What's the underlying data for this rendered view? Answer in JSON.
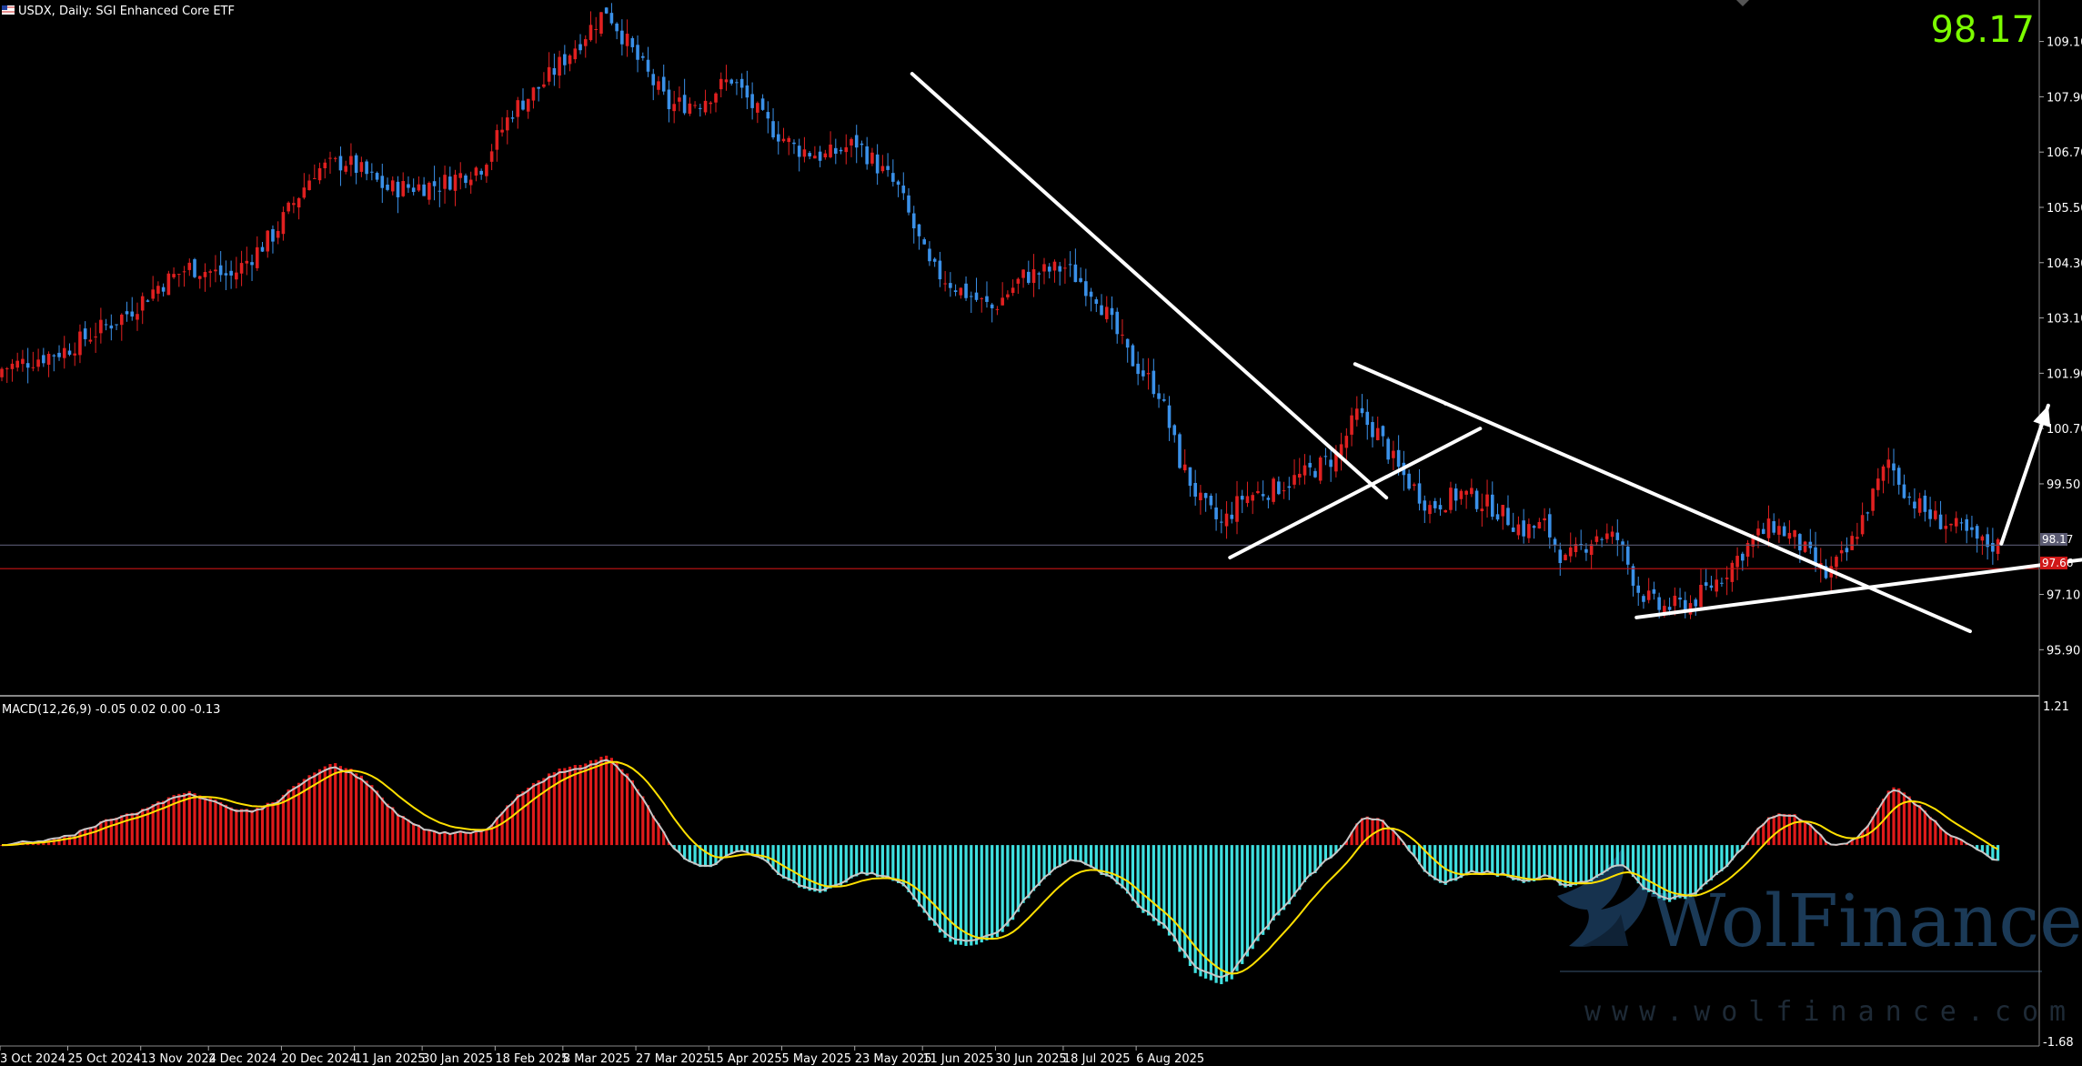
{
  "header": {
    "title": "USDX, Daily:  SGI Enhanced Core ETF",
    "last_price": "98.17",
    "price_tag": "98.17",
    "support_tag": "97.66"
  },
  "macd": {
    "label": "MACD(12,26,9) -0.05 0.02 0.00 -0.13",
    "axis_max": "1.21",
    "axis_min": "-1.68"
  },
  "watermark": {
    "brand": "WolFinance",
    "url": "www.wolfinance.com"
  },
  "colors": {
    "up": "#e02020",
    "down": "#3a90e8",
    "macd_pos": "#e01a1a",
    "macd_neg": "#3fe0e0",
    "signal": "#ffe000",
    "macd_line": "#c8c8c8",
    "support_line": "#c81414",
    "last_line": "#5a5a72",
    "trendline": "#ffffff"
  },
  "chart_data": {
    "type": "candlestick",
    "symbol": "USDX",
    "timeframe": "Daily",
    "price_axis_ticks": [
      "109.10",
      "107.90",
      "106.70",
      "105.50",
      "104.30",
      "103.10",
      "101.90",
      "100.70",
      "99.50",
      "97.10",
      "95.90"
    ],
    "date_labels": [
      "3 Oct 2024",
      "25 Oct 2024",
      "13 Nov 2024",
      "2 Dec 2024",
      "20 Dec 2024",
      "11 Jan 2025",
      "30 Jan 2025",
      "18 Feb 2025",
      "8 Mar 2025",
      "27 Mar 2025",
      "15 Apr 2025",
      "5 May 2025",
      "23 May 2025",
      "11 Jun 2025",
      "30 Jun 2025",
      "18 Jul 2025",
      "6 Aug 2025"
    ],
    "close_path": [
      [
        0,
        102.0
      ],
      [
        12,
        102.4
      ],
      [
        24,
        103.2
      ],
      [
        30,
        103.8
      ],
      [
        36,
        104.2
      ],
      [
        44,
        104.0
      ],
      [
        52,
        104.9
      ],
      [
        60,
        106.3
      ],
      [
        66,
        106.5
      ],
      [
        74,
        105.9
      ],
      [
        84,
        106.0
      ],
      [
        92,
        106.4
      ],
      [
        98,
        107.6
      ],
      [
        104,
        108.2
      ],
      [
        110,
        109.0
      ],
      [
        116,
        109.8
      ],
      [
        122,
        108.7
      ],
      [
        128,
        107.7
      ],
      [
        134,
        107.8
      ],
      [
        140,
        108.3
      ],
      [
        146,
        107.4
      ],
      [
        152,
        106.8
      ],
      [
        158,
        106.6
      ],
      [
        164,
        106.9
      ],
      [
        172,
        105.9
      ],
      [
        178,
        104.2
      ],
      [
        184,
        103.7
      ],
      [
        190,
        103.3
      ],
      [
        196,
        104.0
      ],
      [
        204,
        104.2
      ],
      [
        210,
        103.6
      ],
      [
        216,
        102.3
      ],
      [
        222,
        101.5
      ],
      [
        226,
        100.0
      ],
      [
        230,
        99.1
      ],
      [
        234,
        98.6
      ],
      [
        238,
        99.2
      ],
      [
        244,
        99.4
      ],
      [
        250,
        99.7
      ],
      [
        256,
        100.1
      ],
      [
        260,
        101.0
      ],
      [
        264,
        100.6
      ],
      [
        268,
        99.8
      ],
      [
        274,
        99.0
      ],
      [
        280,
        99.3
      ],
      [
        286,
        99.0
      ],
      [
        292,
        98.5
      ],
      [
        296,
        98.6
      ],
      [
        300,
        97.8
      ],
      [
        306,
        98.4
      ],
      [
        310,
        98.3
      ],
      [
        314,
        97.2
      ],
      [
        318,
        96.8
      ],
      [
        324,
        96.9
      ],
      [
        330,
        97.5
      ],
      [
        336,
        98.3
      ],
      [
        340,
        98.6
      ],
      [
        344,
        98.3
      ],
      [
        350,
        97.5
      ],
      [
        354,
        98.0
      ],
      [
        358,
        99.0
      ],
      [
        362,
        100.0
      ],
      [
        366,
        99.2
      ],
      [
        370,
        98.8
      ],
      [
        374,
        98.6
      ],
      [
        380,
        98.2
      ],
      [
        383,
        98.17
      ]
    ],
    "price_range": [
      94.9,
      110.0
    ],
    "macd_range": [
      -1.68,
      1.21
    ],
    "macd_last": {
      "macd": -0.05,
      "signal": 0.02,
      "histogram": 0.0,
      "value4": -0.13
    },
    "grid": false,
    "horizontal_levels": [
      {
        "name": "last",
        "value": 98.17
      },
      {
        "name": "support",
        "value": 97.66
      }
    ],
    "drawings": [
      {
        "type": "trendline",
        "from": [
          175,
          108.4
        ],
        "to": [
          266,
          99.2
        ]
      },
      {
        "type": "trendline",
        "from": [
          236,
          97.9
        ],
        "to": [
          284,
          100.7
        ]
      },
      {
        "type": "trendline",
        "from": [
          260,
          102.1
        ],
        "to": [
          378,
          96.3
        ]
      },
      {
        "type": "trendline",
        "from": [
          314,
          96.6
        ],
        "to": [
          430,
          98.3
        ]
      },
      {
        "type": "arrow",
        "from": [
          384,
          98.2
        ],
        "to": [
          393,
          101.2
        ]
      }
    ]
  }
}
